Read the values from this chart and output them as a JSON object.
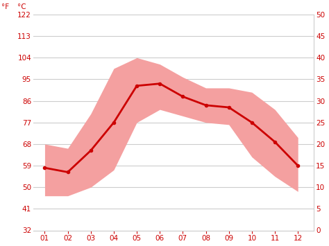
{
  "months": [
    1,
    2,
    3,
    4,
    5,
    6,
    7,
    8,
    9,
    10,
    11,
    12
  ],
  "month_labels": [
    "01",
    "02",
    "03",
    "04",
    "05",
    "06",
    "07",
    "08",
    "09",
    "10",
    "11",
    "12"
  ],
  "mean_temp_c": [
    14.5,
    13.5,
    18.5,
    25.0,
    33.5,
    34.0,
    31.0,
    29.0,
    28.5,
    25.0,
    20.5,
    15.0
  ],
  "max_temp_c": [
    20.0,
    19.0,
    27.0,
    37.5,
    40.0,
    38.5,
    35.5,
    33.0,
    33.0,
    32.0,
    28.0,
    21.5
  ],
  "min_temp_c": [
    8.0,
    8.0,
    10.0,
    14.0,
    25.0,
    28.0,
    26.5,
    25.0,
    24.5,
    17.0,
    12.5,
    9.0
  ],
  "line_color": "#cc0000",
  "band_color": "#f4a0a0",
  "grid_color": "#cccccc",
  "tick_color": "#cc0000",
  "background_color": "#ffffff",
  "ylim_c": [
    0,
    50
  ],
  "yticks_c": [
    0,
    5,
    10,
    15,
    20,
    25,
    30,
    35,
    40,
    45,
    50
  ],
  "yticks_f": [
    32,
    41,
    50,
    59,
    68,
    77,
    86,
    95,
    104,
    113,
    122
  ],
  "label_f": "°F",
  "label_c": "°C"
}
